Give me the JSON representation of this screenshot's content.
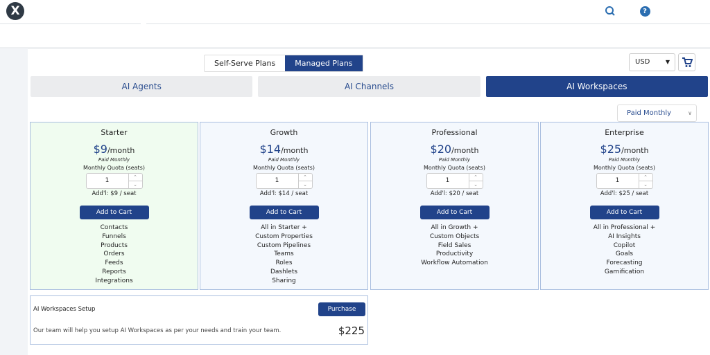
{
  "header": {
    "logo": "X",
    "icons": [
      "search-icon",
      "help-icon"
    ]
  },
  "plan_toggle": [
    "Self-Serve Plans",
    "Managed Plans"
  ],
  "plan_toggle_active": "Managed Plans",
  "currency": "USD",
  "tabs": [
    "AI Agents",
    "AI Channels",
    "AI Workspaces"
  ],
  "active_tab": "AI Workspaces",
  "billing_period": "Paid Monthly",
  "plans": [
    {
      "name": "Starter",
      "price": "$9",
      "period": "/month",
      "billing": "Paid Monthly",
      "quota_label": "Monthly Quota (seats)",
      "quantity": "1",
      "additional": "Add'l: $9 / seat",
      "button": "Add to Cart",
      "features": [
        "Contacts",
        "Funnels",
        "Products",
        "Orders",
        "Feeds",
        "Reports",
        "Integrations"
      ]
    },
    {
      "name": "Growth",
      "price": "$14",
      "period": "/month",
      "billing": "Paid Monthly",
      "quota_label": "Monthly Quota (seats)",
      "quantity": "1",
      "additional": "Add'l: $14 / seat",
      "button": "Add to Cart",
      "features": [
        "All in Starter +",
        "Custom Properties",
        "Custom Pipelines",
        "Teams",
        "Roles",
        "Dashlets",
        "Sharing"
      ]
    },
    {
      "name": "Professional",
      "price": "$20",
      "period": "/month",
      "billing": "Paid Monthly",
      "quota_label": "Monthly Quota (seats)",
      "quantity": "1",
      "additional": "Add'l: $20 / seat",
      "button": "Add to Cart",
      "features": [
        "All in Growth +",
        "Custom Objects",
        "Field Sales",
        "Productivity",
        "Workflow Automation"
      ]
    },
    {
      "name": "Enterprise",
      "price": "$25",
      "period": "/month",
      "billing": "Paid Monthly",
      "quota_label": "Monthly Quota (seats)",
      "quantity": "1",
      "additional": "Add'l: $25 / seat",
      "button": "Add to Cart",
      "features": [
        "All in Professional +",
        "AI Insights",
        "Copilot",
        "Goals",
        "Forecasting",
        "Gamification"
      ]
    }
  ],
  "setup": {
    "title": "AI Workspaces Setup",
    "description": "Our team will help you setup AI Workspaces as per your needs and train your team.",
    "button": "Purchase",
    "price": "$225"
  },
  "colors": {
    "primary": "#21438a",
    "starter_bg": "#f0fcf0",
    "card_bg": "#f4f8fd"
  }
}
